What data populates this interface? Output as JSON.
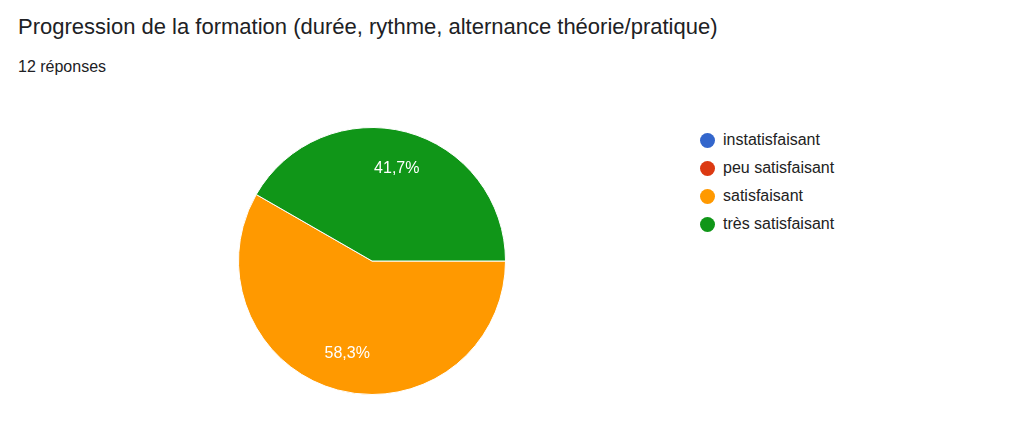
{
  "chart_data": {
    "type": "pie",
    "title": "Progression de la formation (durée, rythme, alternance théorie/pratique)",
    "subtitle": "12 réponses",
    "categories": [
      "instatisfaisant",
      "peu satisfaisant",
      "satisfaisant",
      "très satisfaisant"
    ],
    "values": [
      0,
      0,
      58.3,
      41.7
    ],
    "value_labels": [
      null,
      null,
      "58,3%",
      "41,7%"
    ],
    "colors": [
      "#3366cc",
      "#dc3912",
      "#ff9900",
      "#109618"
    ],
    "legend": "right",
    "data_labels": true
  }
}
